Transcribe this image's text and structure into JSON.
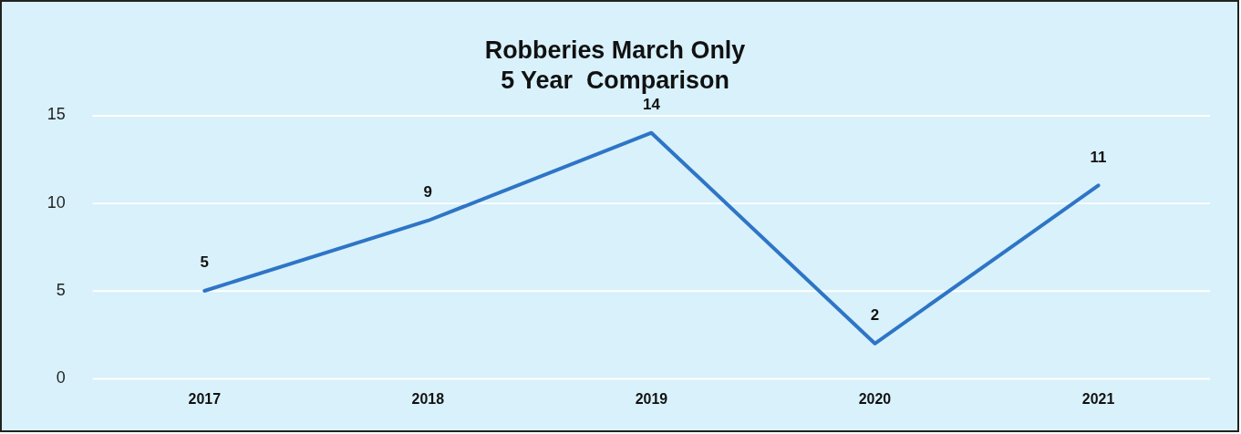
{
  "chart_data": {
    "type": "line",
    "title": [
      "Robberies March Only",
      "5 Year  Comparison"
    ],
    "categories": [
      "2017",
      "2018",
      "2019",
      "2020",
      "2021"
    ],
    "values": [
      5,
      9,
      14,
      2,
      11
    ],
    "color": "#2e75c6",
    "ylim": [
      0,
      15
    ],
    "yticks": [
      0,
      5,
      10,
      15
    ],
    "grid": "y",
    "legend": false,
    "marker": "none",
    "data_labels": true
  }
}
